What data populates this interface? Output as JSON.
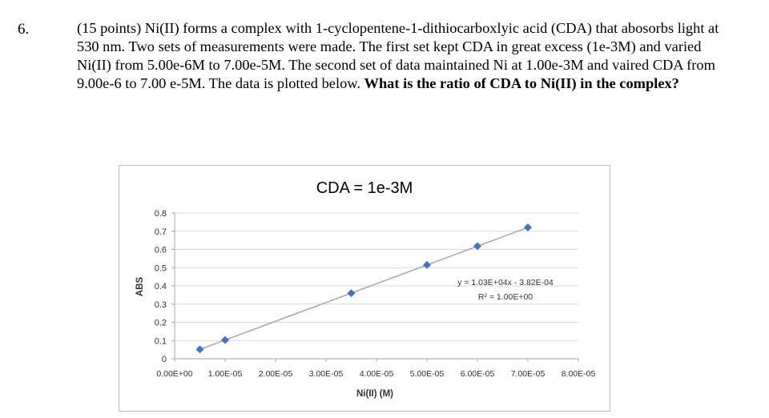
{
  "question": {
    "number": "6.",
    "text": "(15 points) Ni(II) forms a complex with 1-cyclopentene-1-dithiocarboxlyic acid (CDA) that abosorbs light at 530 nm.  Two sets of measurements were made.  The first set kept CDA in great excess (1e-3M) and varied Ni(II) from 5.00e-6M to 7.00e-5M.  The second set of data maintained Ni at 1.00e-3M and vaired CDA from 9.00e-6 to 7.00 e-5M.  The data is plotted below. ",
    "bold_text": "What is the ratio of CDA to Ni(II) in the complex?"
  },
  "chart_data": {
    "type": "scatter",
    "title": "CDA = 1e-3M",
    "xlabel": "Ni(II) (M)",
    "ylabel": "ABS",
    "xlim": [
      0,
      8e-05
    ],
    "ylim": [
      0,
      0.8
    ],
    "x_ticks": [
      0,
      1e-05,
      2e-05,
      3e-05,
      4e-05,
      5e-05,
      6e-05,
      7e-05,
      8e-05
    ],
    "x_tick_labels": [
      "0.00E+00",
      "1.00E-05",
      "2.00E-05",
      "3.00E-05",
      "4.00E-05",
      "5.00E-05",
      "6.00E-05",
      "7.00E-05",
      "8.00E-05"
    ],
    "y_ticks": [
      0,
      0.1,
      0.2,
      0.3,
      0.4,
      0.5,
      0.6,
      0.7,
      0.8
    ],
    "y_tick_labels": [
      "0",
      "0.1",
      "0.2",
      "0.3",
      "0.4",
      "0.5",
      "0.6",
      "0.7",
      "0.8"
    ],
    "grid": true,
    "series": [
      {
        "x": [
          5e-06,
          1e-05,
          3.5e-05,
          5e-05,
          6e-05,
          7e-05
        ],
        "y": [
          0.051,
          0.103,
          0.36,
          0.515,
          0.618,
          0.721
        ],
        "color": "#4472c4"
      }
    ],
    "trendline": {
      "slope": 10300,
      "intercept": -0.000382,
      "color": "#a6a6a6",
      "equation": "y = 1.03E+04x - 3.82E-04",
      "r_squared": "R² = 1.00E+00"
    }
  }
}
